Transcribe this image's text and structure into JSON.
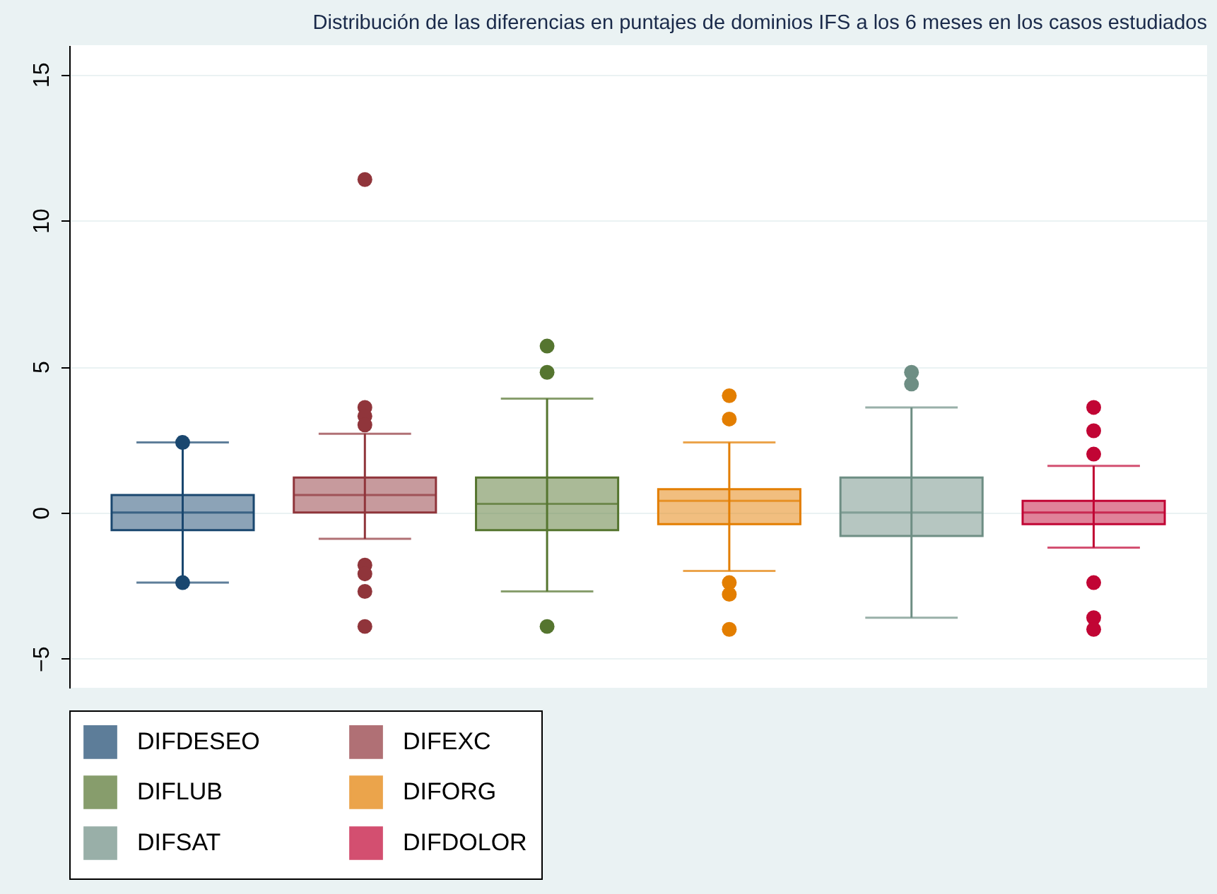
{
  "chart_data": {
    "type": "box",
    "title": "Distribución de las diferencias en puntajes de dominios IFS a los 6 meses en los casos estudiados",
    "categories": [
      null
    ],
    "ylim": [
      -6,
      16
    ],
    "yticks": [
      -5,
      0,
      5,
      10,
      15
    ],
    "grid": "y",
    "legend": "bottom",
    "marker": "circle",
    "series": [
      {
        "name": "DIFDESEO",
        "color": "#1a476f",
        "boxes": [
          {
            "low": -2.4,
            "q1": -0.6,
            "median": 0,
            "q3": 0.6,
            "high": 2.4,
            "outliers": [
              2.4,
              -2.4
            ]
          }
        ]
      },
      {
        "name": "DIFEXC",
        "color": "#90353b",
        "boxes": [
          {
            "low": -0.9,
            "q1": 0,
            "median": 0.6,
            "q3": 1.2,
            "high": 2.7,
            "outliers": [
              11.4,
              3.6,
              3.3,
              3.0,
              -1.8,
              -2.1,
              -2.7,
              -3.9
            ]
          }
        ]
      },
      {
        "name": "DIFLUB",
        "color": "#55752f",
        "boxes": [
          {
            "low": -2.7,
            "q1": -0.6,
            "median": 0.3,
            "q3": 1.2,
            "high": 3.9,
            "outliers": [
              5.7,
              4.8,
              -3.9
            ]
          }
        ]
      },
      {
        "name": "DIFORG",
        "color": "#e37e00",
        "boxes": [
          {
            "low": -2.0,
            "q1": -0.4,
            "median": 0.4,
            "q3": 0.8,
            "high": 2.4,
            "outliers": [
              4.0,
              3.2,
              -2.4,
              -2.8,
              -4.0
            ]
          }
        ]
      },
      {
        "name": "DIFSAT",
        "color": "#6e8e84",
        "boxes": [
          {
            "low": -3.6,
            "q1": -0.8,
            "median": 0,
            "q3": 1.2,
            "high": 3.6,
            "outliers": [
              4.8,
              4.4
            ]
          }
        ]
      },
      {
        "name": "DIFDOLOR",
        "color": "#c10534",
        "boxes": [
          {
            "low": -1.2,
            "q1": -0.4,
            "median": 0,
            "q3": 0.4,
            "high": 1.6,
            "outliers": [
              3.6,
              2.8,
              2.0,
              -2.4,
              -3.6,
              -4.0
            ]
          }
        ]
      }
    ]
  }
}
